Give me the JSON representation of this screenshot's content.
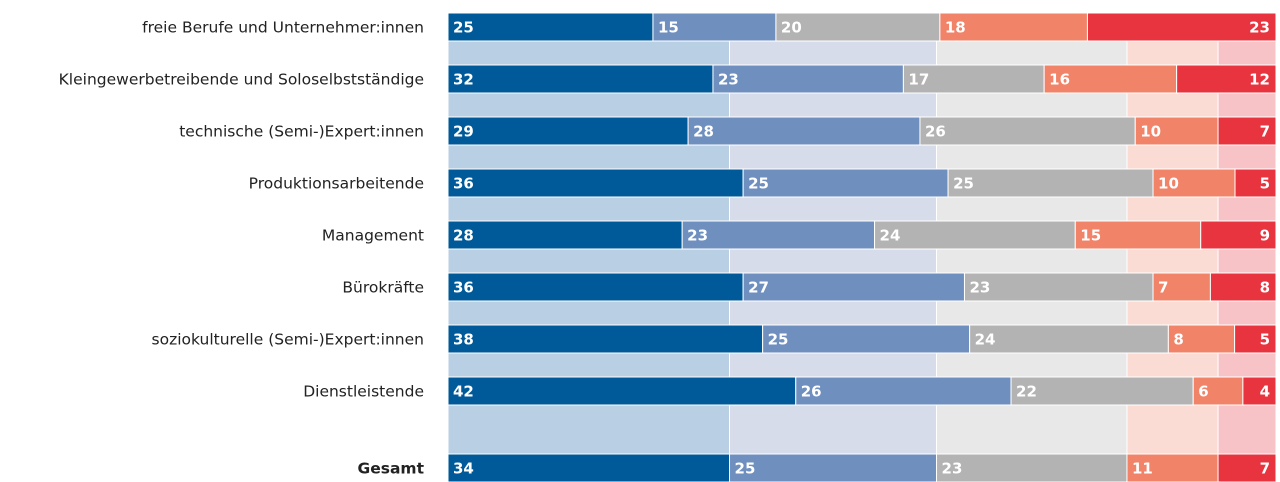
{
  "chart_data": {
    "type": "stacked-bar",
    "categories": [
      "freie Berufe und Unternehmer:innen",
      "Kleingewerbetreibende und Soloselbstständige",
      "technische (Semi-)Expert:innen",
      "Produktionsarbeitende",
      "Management",
      "Bürokräfte",
      "soziokulturelle (Semi-)Expert:innen",
      "Dienstleistende",
      "Gesamt"
    ],
    "series": [
      {
        "color": "#005a9a",
        "values": [
          25,
          32,
          29,
          36,
          28,
          36,
          38,
          42,
          34
        ]
      },
      {
        "color": "#6f8fbf",
        "values": [
          15,
          23,
          28,
          25,
          23,
          27,
          25,
          26,
          25
        ]
      },
      {
        "color": "#b3b3b3",
        "values": [
          20,
          17,
          26,
          25,
          24,
          23,
          24,
          22,
          23
        ]
      },
      {
        "color": "#f08368",
        "values": [
          18,
          16,
          10,
          10,
          15,
          7,
          8,
          6,
          11
        ]
      },
      {
        "color": "#e8343f",
        "values": [
          23,
          12,
          7,
          5,
          9,
          8,
          5,
          4,
          7
        ]
      }
    ]
  }
}
